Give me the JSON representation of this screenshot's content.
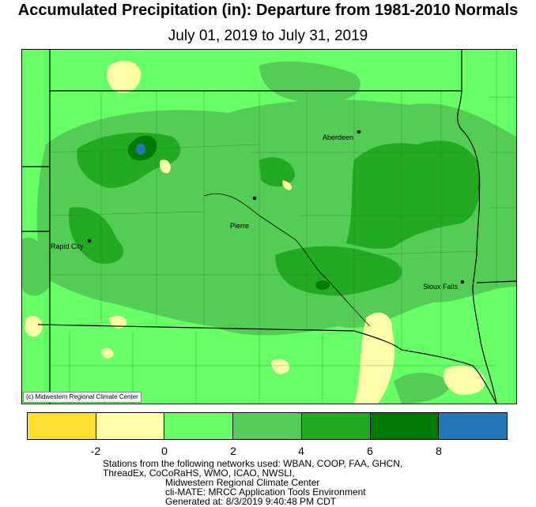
{
  "header": {
    "title": "Accumulated Precipitation (in): Departure from 1981-2010 Normals",
    "subtitle": "July 01, 2019 to July 31, 2019"
  },
  "map": {
    "credit": "(c) Midwestern Regional Climate Center",
    "cities": [
      {
        "name": "Aberdeen"
      },
      {
        "name": "Pierre"
      },
      {
        "name": "Rapid City"
      },
      {
        "name": "Sioux Falls"
      }
    ],
    "colors": {
      "below_-2": "#ffdd33",
      "-2_to_0": "#ffffaa",
      "0_to_2": "#66ff66",
      "2_to_4": "#55cc55",
      "4_to_6": "#22aa22",
      "6_to_8": "#007a00",
      "above_8": "#2277bb"
    }
  },
  "legend": {
    "swatch_colors": [
      "#ffdd33",
      "#ffffaa",
      "#66ff66",
      "#55cc55",
      "#22aa22",
      "#007a00",
      "#2277bb"
    ],
    "ticks": [
      "-2",
      "0",
      "2",
      "4",
      "6",
      "8"
    ]
  },
  "footer": {
    "line1": "Stations from the following networks used: WBAN, COOP, FAA, GHCN,",
    "line2": "ThreadEx, CoCoRaHS, WMO, ICAO, NWSLI,",
    "line3": "Midwestern Regional Climate Center",
    "line4": "cli-MATE: MRCC Application Tools Environment",
    "line5": "Generated at: 8/3/2019 9:40:48 PM CDT"
  }
}
